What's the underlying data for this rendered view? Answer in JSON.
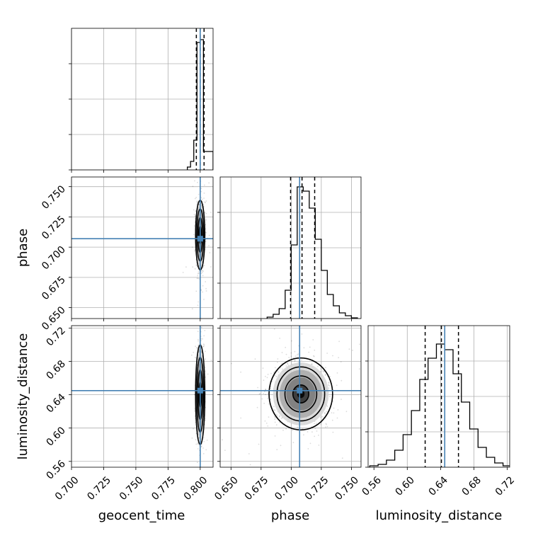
{
  "chart_data": {
    "type": "corner",
    "parameters": [
      "geocent_time",
      "phase",
      "luminosity_distance"
    ],
    "truths": {
      "geocent_time": 0.8,
      "phase": 0.707,
      "luminosity_distance": 0.645
    },
    "ranges": {
      "geocent_time": [
        0.7,
        0.81
      ],
      "phase": [
        0.641,
        0.758
      ],
      "luminosity_distance": [
        0.553,
        0.723
      ]
    },
    "ticks": {
      "geocent_time": [
        "0.700",
        "0.725",
        "0.750",
        "0.775",
        "0.800"
      ],
      "phase": [
        "0.650",
        "0.675",
        "0.700",
        "0.725",
        "0.750"
      ],
      "luminosity_distance": [
        "0.56",
        "0.60",
        "0.64",
        "0.68",
        "0.72"
      ]
    },
    "quantiles": {
      "geocent_time": [
        0.797,
        0.8,
        0.803
      ],
      "phase": [
        0.6995,
        0.709,
        0.7195
      ],
      "luminosity_distance": [
        0.6215,
        0.641,
        0.6615
      ]
    },
    "histograms": {
      "geocent_time": {
        "edges": [
          0.79,
          0.7925,
          0.795,
          0.7975,
          0.8,
          0.8025,
          0.805,
          0.81
        ],
        "counts": [
          0.02,
          0.06,
          0.21,
          0.9,
          0.92,
          0.13,
          0.13
        ]
      },
      "phase": {
        "edges": [
          0.68,
          0.685,
          0.69,
          0.695,
          0.7,
          0.705,
          0.71,
          0.715,
          0.72,
          0.725,
          0.73,
          0.735,
          0.74,
          0.745,
          0.75,
          0.755
        ],
        "counts": [
          0.01,
          0.03,
          0.07,
          0.2,
          0.52,
          0.93,
          0.9,
          0.78,
          0.56,
          0.34,
          0.17,
          0.09,
          0.04,
          0.02,
          0.005
        ]
      },
      "luminosity_distance": {
        "edges": [
          0.555,
          0.565,
          0.575,
          0.585,
          0.595,
          0.605,
          0.615,
          0.625,
          0.635,
          0.645,
          0.655,
          0.665,
          0.675,
          0.685,
          0.695,
          0.705,
          0.715,
          0.725
        ],
        "counts": [
          0.01,
          0.02,
          0.05,
          0.12,
          0.23,
          0.4,
          0.62,
          0.77,
          0.87,
          0.83,
          0.66,
          0.46,
          0.27,
          0.14,
          0.07,
          0.03,
          0.01
        ]
      }
    },
    "posterior_2d": {
      "geocent_time__phase": {
        "center": [
          0.8,
          0.71
        ],
        "sigma": [
          0.0015,
          0.012
        ]
      },
      "geocent_time__luminosity_distance": {
        "center": [
          0.8,
          0.64
        ],
        "sigma": [
          0.0015,
          0.025
        ]
      },
      "phase__luminosity_distance": {
        "center": [
          0.708,
          0.641
        ],
        "sigma": [
          0.011,
          0.018
        ]
      }
    },
    "grid": true,
    "colors": {
      "truth": "#4682b4",
      "contour": "#000000",
      "hist": "#000000",
      "grid": "#b0b0b0"
    }
  }
}
